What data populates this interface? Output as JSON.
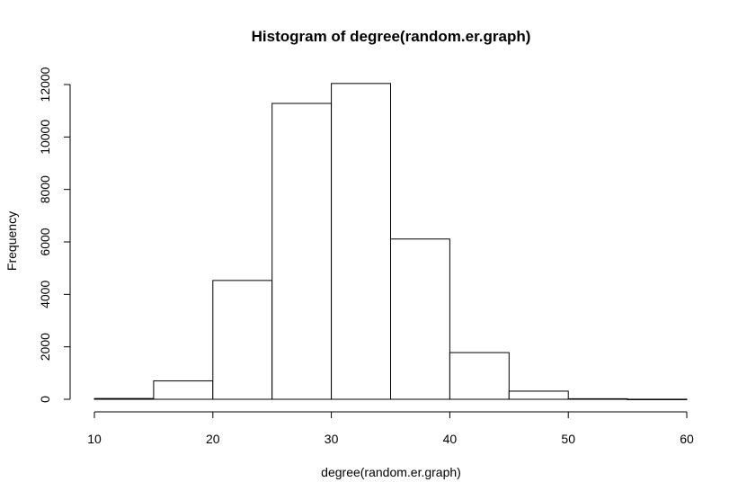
{
  "chart_data": {
    "type": "bar",
    "title": "Histogram of degree(random.er.graph)",
    "xlabel": "degree(random.er.graph)",
    "ylabel": "Frequency",
    "bins": [
      {
        "start": 10,
        "end": 15,
        "value": 30
      },
      {
        "start": 15,
        "end": 20,
        "value": 700
      },
      {
        "start": 20,
        "end": 25,
        "value": 4530
      },
      {
        "start": 25,
        "end": 30,
        "value": 11280
      },
      {
        "start": 30,
        "end": 35,
        "value": 12040
      },
      {
        "start": 35,
        "end": 40,
        "value": 6110
      },
      {
        "start": 40,
        "end": 45,
        "value": 1780
      },
      {
        "start": 45,
        "end": 50,
        "value": 310
      },
      {
        "start": 50,
        "end": 55,
        "value": 20
      },
      {
        "start": 55,
        "end": 60,
        "value": 2
      }
    ],
    "xlim": [
      10,
      60
    ],
    "ylim": [
      0,
      12000
    ],
    "x_ticks": [
      10,
      20,
      30,
      40,
      50,
      60
    ],
    "y_ticks": [
      0,
      2000,
      4000,
      6000,
      8000,
      10000,
      12000
    ],
    "grid": false,
    "legend": "none"
  }
}
